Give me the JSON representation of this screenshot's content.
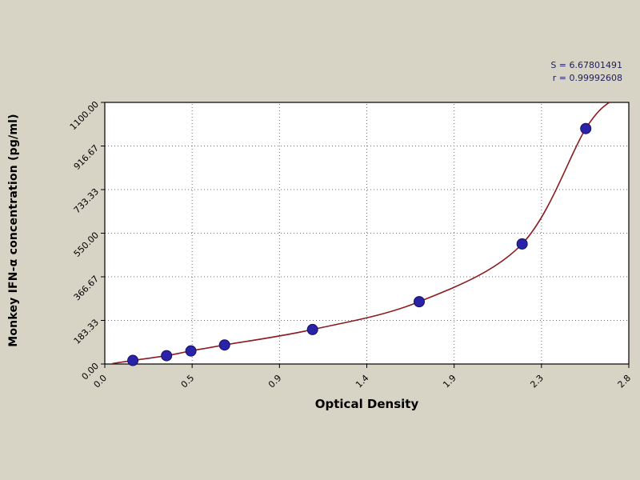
{
  "chart_data": {
    "type": "scatter",
    "title": "",
    "xlabel": "Optical Density",
    "ylabel": "Monkey IFN-α concentration (pg/ml)",
    "xlim": [
      0.0,
      2.8
    ],
    "ylim": [
      0,
      1100
    ],
    "x_ticks": [
      "0.0",
      "0.5",
      "0.9",
      "1.4",
      "1.9",
      "2.3",
      "2.8"
    ],
    "y_ticks": [
      "0.00",
      "183.33",
      "366.67",
      "550.00",
      "733.33",
      "916.67",
      "1100.00"
    ],
    "grid": true,
    "legend": false,
    "annotations": {
      "s": "S = 6.67801491",
      "r": "r = 0.99992608"
    },
    "series": [
      {
        "name": "standard-curve-points",
        "points": [
          [
            0.15,
            15
          ],
          [
            0.33,
            35
          ],
          [
            0.46,
            55
          ],
          [
            0.64,
            80
          ],
          [
            1.11,
            145
          ],
          [
            1.68,
            262
          ],
          [
            2.23,
            505
          ],
          [
            2.57,
            990
          ]
        ]
      }
    ],
    "fit_curve": {
      "start": [
        0.04,
        2
      ],
      "end": [
        2.72,
        1115
      ],
      "color": "#8b1b20"
    },
    "colors": {
      "background": "#d7d3c5",
      "plot_bg": "#ffffff",
      "point": "#2a23a8",
      "point_edge": "#141066",
      "grid": "#6b6b6b",
      "axis": "#000000"
    }
  }
}
